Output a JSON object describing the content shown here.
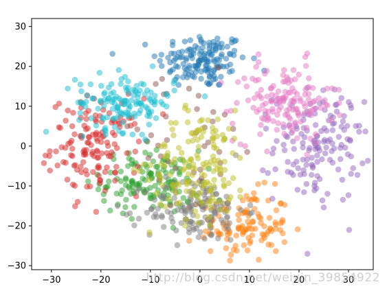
{
  "chart_data": {
    "type": "scatter",
    "title": "",
    "xlabel": "",
    "ylabel": "",
    "xlim": [
      -34,
      35
    ],
    "ylim": [
      -31,
      32
    ],
    "xticks": [
      -30,
      -20,
      -10,
      0,
      10,
      20,
      30
    ],
    "yticks": [
      -30,
      -20,
      -10,
      0,
      10,
      20,
      30
    ],
    "grid": false,
    "legend": "none",
    "marker_alpha": 0.5,
    "clusters": [
      {
        "color": "#1f77b4",
        "cx": 0.5,
        "cy": 21.5,
        "sx": 4.5,
        "sy": 3.5,
        "n": 150
      },
      {
        "color": "#ff7f0e",
        "cx": 9,
        "cy": -20,
        "sx": 4.5,
        "sy": 4.5,
        "n": 120
      },
      {
        "color": "#2ca02c",
        "cx": -10,
        "cy": -9,
        "sx": 5,
        "sy": 4,
        "n": 140
      },
      {
        "color": "#d62728",
        "cx": -21,
        "cy": 0,
        "sx": 4.5,
        "sy": 6,
        "n": 140
      },
      {
        "color": "#9467bd",
        "cx": 24,
        "cy": 0,
        "sx": 4.5,
        "sy": 7,
        "n": 150
      },
      {
        "color": "#8c564b",
        "cx": -3,
        "cy": 0,
        "sx": 9,
        "sy": 9,
        "n": 40
      },
      {
        "color": "#e377c2",
        "cx": 17,
        "cy": 11,
        "sx": 5,
        "sy": 5,
        "n": 150
      },
      {
        "color": "#7f7f7f",
        "cx": -1,
        "cy": -16,
        "sx": 5,
        "sy": 4,
        "n": 140
      },
      {
        "color": "#bcbd22",
        "cx": 0,
        "cy": -5,
        "sx": 5,
        "sy": 7,
        "n": 160
      },
      {
        "color": "#17becf",
        "cx": -15,
        "cy": 11,
        "sx": 5,
        "sy": 3.5,
        "n": 140
      }
    ]
  },
  "watermark": "http://blog.csdn.net/weixin_39854922"
}
